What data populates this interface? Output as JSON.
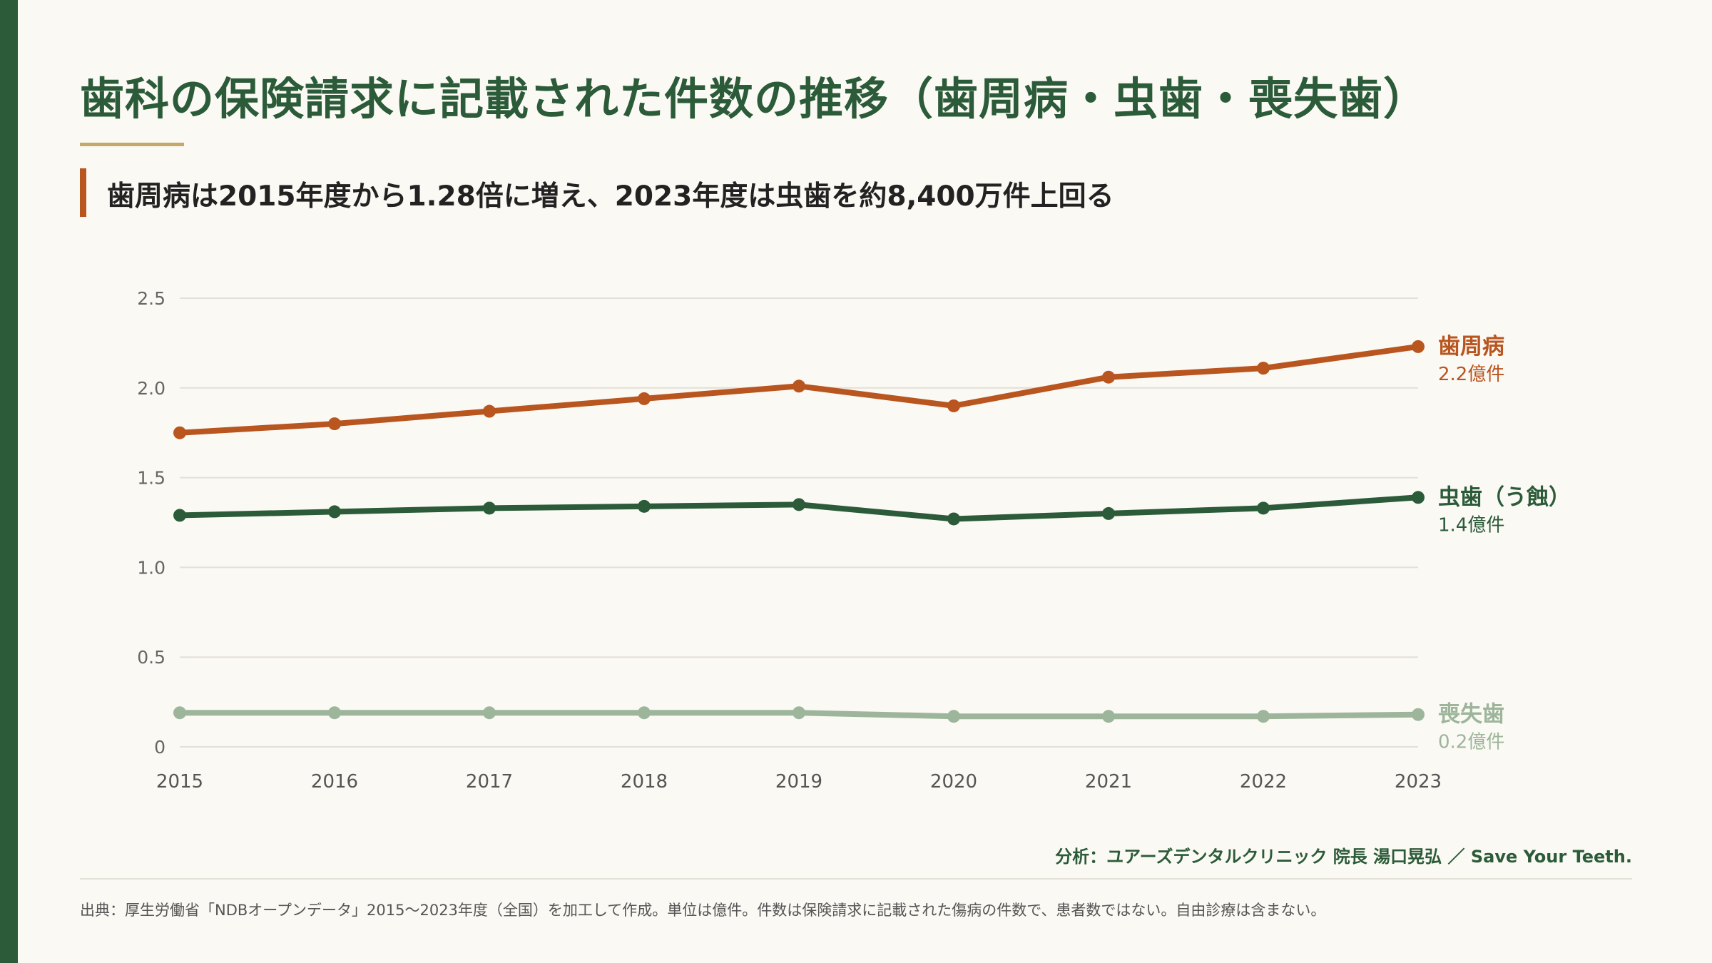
{
  "page": {
    "title": "歯科の保険請求に記載された件数の推移（歯周病・虫歯・喪失歯）",
    "subtitle": "歯周病は2015年度から1.28倍に増え、2023年度は虫歯を約8,400万件上回る",
    "credit": "分析：ユアーズデンタルクリニック 院長 湯口晃弘 ／ Save Your Teeth.",
    "source": "出典：厚生労働省「NDBオープンデータ」2015〜2023年度（全国）を加工して作成。単位は億件。件数は保険請求に記載された傷病の件数で、患者数ではない。自由診療は含まない。"
  },
  "colors": {
    "brand": "#2c5b39",
    "accent": "#c4a96a",
    "periodontal": "#b9551f",
    "caries": "#2c5b39",
    "tooth_loss": "#9db59b"
  },
  "chart_data": {
    "type": "line",
    "title": "",
    "xlabel": "",
    "ylabel": "",
    "x": [
      "2015",
      "2016",
      "2017",
      "2018",
      "2019",
      "2020",
      "2021",
      "2022",
      "2023"
    ],
    "ylim": [
      0,
      2.5
    ],
    "yticks": [
      "0",
      "0.5",
      "1.0",
      "1.5",
      "2.0",
      "2.5"
    ],
    "grid": true,
    "legend": "end-of-line labels (right)",
    "series": [
      {
        "name": "歯周病",
        "end_label": "2.2億件",
        "color": "#b9551f",
        "values": [
          1.75,
          1.8,
          1.87,
          1.94,
          2.01,
          1.9,
          2.06,
          2.11,
          2.23
        ]
      },
      {
        "name": "虫歯（う蝕）",
        "end_label": "1.4億件",
        "color": "#2c5b39",
        "values": [
          1.29,
          1.31,
          1.33,
          1.34,
          1.35,
          1.27,
          1.3,
          1.33,
          1.39
        ]
      },
      {
        "name": "喪失歯",
        "end_label": "0.2億件",
        "color": "#9db59b",
        "values": [
          0.19,
          0.19,
          0.19,
          0.19,
          0.19,
          0.17,
          0.17,
          0.17,
          0.18
        ]
      }
    ]
  }
}
